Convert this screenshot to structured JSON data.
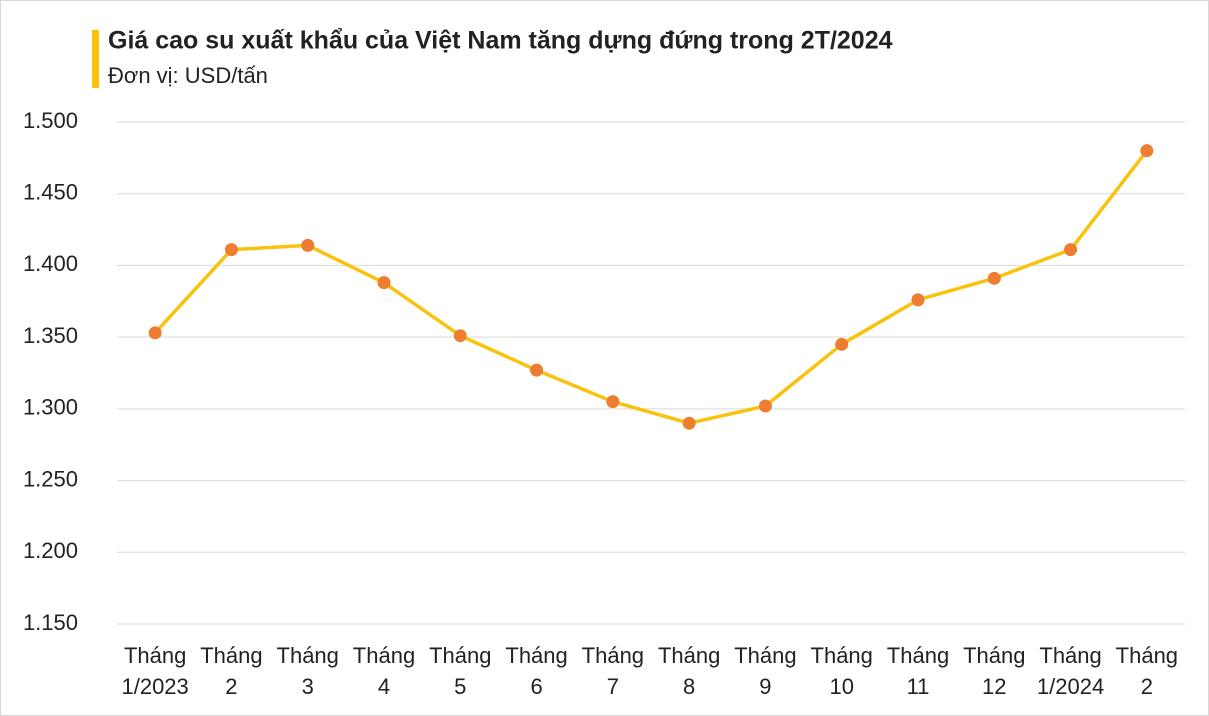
{
  "chart_data": {
    "type": "line",
    "title": "Giá cao su xuất khẩu của Việt Nam tăng dựng đứng trong 2T/2024",
    "subtitle": "Đơn vị: USD/tấn",
    "categories": [
      [
        "Tháng",
        "1/2023"
      ],
      [
        "Tháng",
        "2"
      ],
      [
        "Tháng",
        "3"
      ],
      [
        "Tháng",
        "4"
      ],
      [
        "Tháng",
        "5"
      ],
      [
        "Tháng",
        "6"
      ],
      [
        "Tháng",
        "7"
      ],
      [
        "Tháng",
        "8"
      ],
      [
        "Tháng",
        "9"
      ],
      [
        "Tháng",
        "10"
      ],
      [
        "Tháng",
        "11"
      ],
      [
        "Tháng",
        "12"
      ],
      [
        "Tháng",
        "1/2024"
      ],
      [
        "Tháng",
        "2"
      ]
    ],
    "values": [
      1353,
      1411,
      1414,
      1388,
      1351,
      1327,
      1305,
      1290,
      1302,
      1345,
      1376,
      1391,
      1411,
      1480
    ],
    "color": "#f9c20c",
    "marker_color": "#ed7d31",
    "ylim": [
      1150,
      1500
    ],
    "yticks": [
      {
        "value": 1150,
        "label": "1.150"
      },
      {
        "value": 1200,
        "label": "1.200"
      },
      {
        "value": 1250,
        "label": "1.250"
      },
      {
        "value": 1300,
        "label": "1.300"
      },
      {
        "value": 1350,
        "label": "1.350"
      },
      {
        "value": 1400,
        "label": "1.400"
      },
      {
        "value": 1450,
        "label": "1.450"
      },
      {
        "value": 1500,
        "label": "1.500"
      }
    ],
    "grid": true
  }
}
